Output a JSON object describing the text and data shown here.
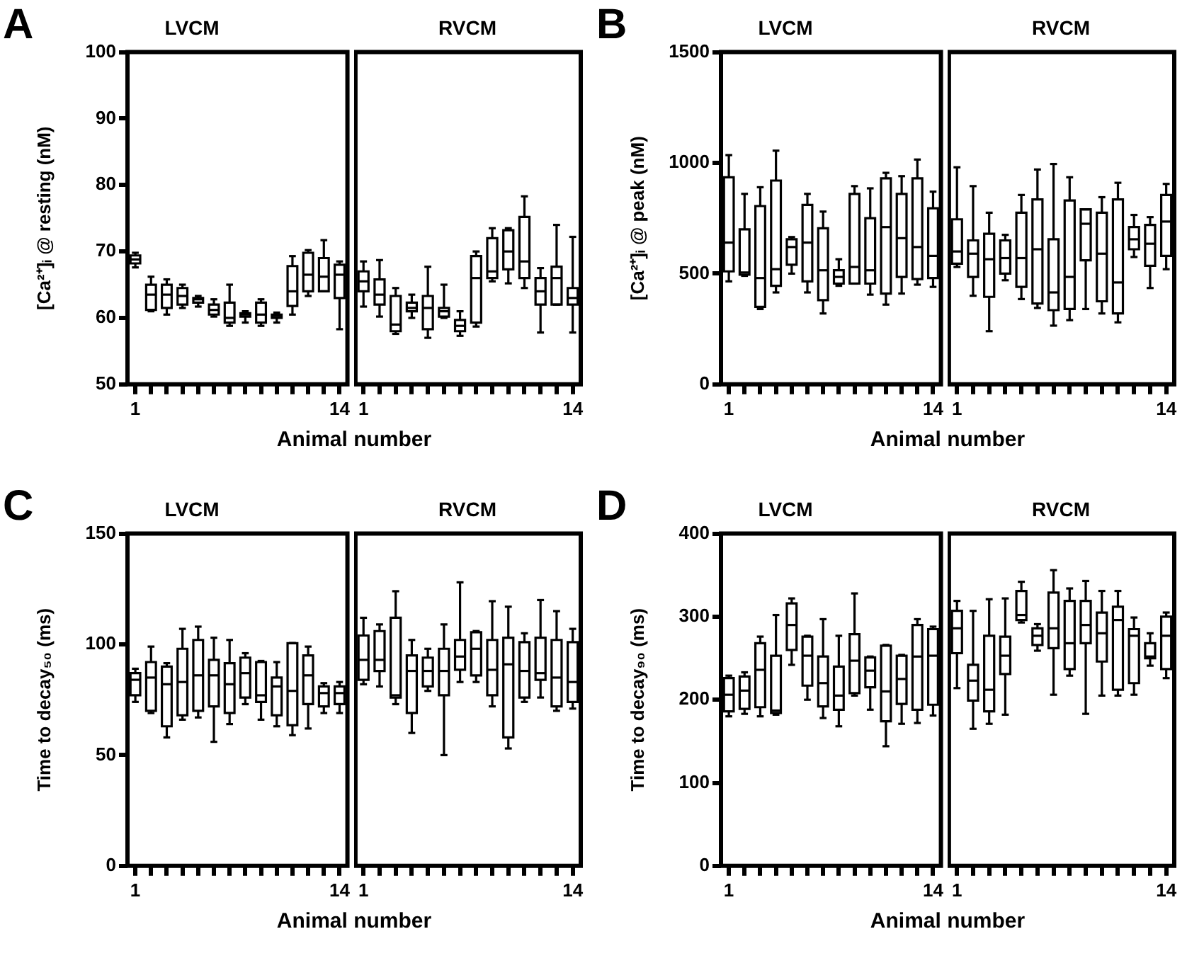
{
  "chart_data": [
    {
      "type": "box",
      "title": "LVCM",
      "ylabel": "[Ca²⁺]ᵢ @ resting (nM)",
      "xlabel": "Animal number",
      "annotations": [
        "A"
      ],
      "categories": [
        "1",
        null,
        null,
        null,
        null,
        null,
        null,
        null,
        null,
        null,
        null,
        null,
        null,
        "14"
      ],
      "ylim": [
        50,
        100
      ],
      "yticks": [
        50,
        60,
        70,
        80,
        90,
        100
      ],
      "boxes": [
        {
          "low": 67.6,
          "q1": 68.2,
          "median": 68.8,
          "q3": 69.4,
          "high": 69.8
        },
        {
          "low": 61,
          "q1": 61.2,
          "median": 63.5,
          "q3": 65,
          "high": 66.2
        },
        {
          "low": 60.5,
          "q1": 61.5,
          "median": 63.5,
          "q3": 65,
          "high": 65.8
        },
        {
          "low": 61.5,
          "q1": 62,
          "median": 63.3,
          "q3": 64.5,
          "high": 65
        },
        {
          "low": 61.7,
          "q1": 62.3,
          "median": 62.8,
          "q3": 63,
          "high": 63.3
        },
        {
          "low": 60.2,
          "q1": 60.5,
          "median": 61.2,
          "q3": 62,
          "high": 62.8
        },
        {
          "low": 58.8,
          "q1": 59.3,
          "median": 60,
          "q3": 62.3,
          "high": 65
        },
        {
          "low": 59.3,
          "q1": 60.2,
          "median": 60.5,
          "q3": 60.7,
          "high": 61
        },
        {
          "low": 58.8,
          "q1": 59.3,
          "median": 60.5,
          "q3": 62.3,
          "high": 62.8
        },
        {
          "low": 59.3,
          "q1": 60,
          "median": 60.3,
          "q3": 60.5,
          "high": 60.8
        },
        {
          "low": 60.5,
          "q1": 61.8,
          "median": 64,
          "q3": 67.8,
          "high": 69.3
        },
        {
          "low": 63.3,
          "q1": 64,
          "median": 66.5,
          "q3": 69.8,
          "high": 70.2
        },
        {
          "low": 64,
          "q1": 64,
          "median": 66.2,
          "q3": 69,
          "high": 71.7
        },
        {
          "low": 58.3,
          "q1": 63,
          "median": 66.5,
          "q3": 68,
          "high": 68.5
        }
      ]
    },
    {
      "type": "box",
      "title": "RVCM",
      "tick_labels": "x",
      "categories": [
        "1",
        null,
        null,
        null,
        null,
        null,
        null,
        null,
        null,
        null,
        null,
        null,
        null,
        "14"
      ],
      "ylim": [
        50,
        100
      ],
      "boxes": [
        {
          "low": 61.7,
          "q1": 64,
          "median": 65.5,
          "q3": 67,
          "high": 68.5
        },
        {
          "low": 60.2,
          "q1": 62,
          "median": 63.5,
          "q3": 65.8,
          "high": 68.7
        },
        {
          "low": 57.6,
          "q1": 58,
          "median": 59,
          "q3": 63.3,
          "high": 64.5
        },
        {
          "low": 60,
          "q1": 61,
          "median": 61.5,
          "q3": 62.3,
          "high": 63.5
        },
        {
          "low": 57,
          "q1": 58.3,
          "median": 61.5,
          "q3": 63.3,
          "high": 67.7
        },
        {
          "low": 60,
          "q1": 60.2,
          "median": 61,
          "q3": 61.5,
          "high": 65
        },
        {
          "low": 57.3,
          "q1": 58,
          "median": 58.8,
          "q3": 59.7,
          "high": 61
        },
        {
          "low": 58.7,
          "q1": 59.3,
          "median": 66,
          "q3": 69.3,
          "high": 70
        },
        {
          "low": 65.5,
          "q1": 66,
          "median": 67,
          "q3": 72,
          "high": 73.5
        },
        {
          "low": 65.2,
          "q1": 67.3,
          "median": 70,
          "q3": 73.2,
          "high": 73.5
        },
        {
          "low": 64.5,
          "q1": 66,
          "median": 68.5,
          "q3": 75.2,
          "high": 78.3
        },
        {
          "low": 57.8,
          "q1": 62,
          "median": 64,
          "q3": 66,
          "high": 67.5
        },
        {
          "low": 62,
          "q1": 62,
          "median": 66,
          "q3": 67.7,
          "high": 74
        },
        {
          "low": 57.8,
          "q1": 62,
          "median": 63,
          "q3": 64.5,
          "high": 72.2
        }
      ]
    },
    {
      "type": "box",
      "title": "LVCM",
      "ylabel": "[Ca²⁺]ᵢ @ peak (nM)",
      "xlabel": "Animal number",
      "annotations": [
        "B"
      ],
      "categories": [
        "1",
        null,
        null,
        null,
        null,
        null,
        null,
        null,
        null,
        null,
        null,
        null,
        null,
        "14"
      ],
      "ylim": [
        0,
        1500
      ],
      "yticks": [
        0,
        500,
        1000,
        1500
      ],
      "boxes": [
        {
          "low": 465,
          "q1": 510,
          "median": 640,
          "q3": 935,
          "high": 1035
        },
        {
          "low": 490,
          "q1": 495,
          "median": 505,
          "q3": 700,
          "high": 860
        },
        {
          "low": 340,
          "q1": 350,
          "median": 480,
          "q3": 805,
          "high": 890
        },
        {
          "low": 415,
          "q1": 445,
          "median": 520,
          "q3": 920,
          "high": 1055
        },
        {
          "low": 500,
          "q1": 540,
          "median": 620,
          "q3": 655,
          "high": 665
        },
        {
          "low": 415,
          "q1": 465,
          "median": 640,
          "q3": 810,
          "high": 860
        },
        {
          "low": 320,
          "q1": 380,
          "median": 515,
          "q3": 705,
          "high": 780
        },
        {
          "low": 445,
          "q1": 455,
          "median": 485,
          "q3": 515,
          "high": 565
        },
        {
          "low": 455,
          "q1": 455,
          "median": 530,
          "q3": 860,
          "high": 895
        },
        {
          "low": 405,
          "q1": 455,
          "median": 515,
          "q3": 750,
          "high": 885
        },
        {
          "low": 360,
          "q1": 410,
          "median": 710,
          "q3": 930,
          "high": 955
        },
        {
          "low": 410,
          "q1": 485,
          "median": 660,
          "q3": 860,
          "high": 940
        },
        {
          "low": 450,
          "q1": 475,
          "median": 620,
          "q3": 930,
          "high": 1015
        },
        {
          "low": 440,
          "q1": 480,
          "median": 580,
          "q3": 795,
          "high": 870
        }
      ]
    },
    {
      "type": "box",
      "title": "RVCM",
      "tick_labels": "x",
      "categories": [
        "1",
        null,
        null,
        null,
        null,
        null,
        null,
        null,
        null,
        null,
        null,
        null,
        null,
        "14"
      ],
      "ylim": [
        0,
        1500
      ],
      "boxes": [
        {
          "low": 530,
          "q1": 545,
          "median": 600,
          "q3": 745,
          "high": 980
        },
        {
          "low": 400,
          "q1": 485,
          "median": 590,
          "q3": 650,
          "high": 895
        },
        {
          "low": 240,
          "q1": 395,
          "median": 565,
          "q3": 680,
          "high": 775
        },
        {
          "low": 470,
          "q1": 500,
          "median": 570,
          "q3": 650,
          "high": 675
        },
        {
          "low": 385,
          "q1": 440,
          "median": 570,
          "q3": 775,
          "high": 855
        },
        {
          "low": 345,
          "q1": 365,
          "median": 610,
          "q3": 835,
          "high": 970
        },
        {
          "low": 265,
          "q1": 335,
          "median": 415,
          "q3": 655,
          "high": 995
        },
        {
          "low": 290,
          "q1": 340,
          "median": 485,
          "q3": 830,
          "high": 935
        },
        {
          "low": 340,
          "q1": 560,
          "median": 725,
          "q3": 790,
          "high": 790
        },
        {
          "low": 320,
          "q1": 375,
          "median": 590,
          "q3": 775,
          "high": 845
        },
        {
          "low": 280,
          "q1": 320,
          "median": 460,
          "q3": 835,
          "high": 910
        },
        {
          "low": 575,
          "q1": 610,
          "median": 655,
          "q3": 710,
          "high": 765
        },
        {
          "low": 435,
          "q1": 535,
          "median": 635,
          "q3": 720,
          "high": 755
        },
        {
          "low": 520,
          "q1": 580,
          "median": 735,
          "q3": 855,
          "high": 905
        }
      ]
    },
    {
      "type": "box",
      "title": "LVCM",
      "ylabel": "Time to decay₅₀ (ms)",
      "xlabel": "Animal number",
      "annotations": [
        "C"
      ],
      "categories": [
        "1",
        null,
        null,
        null,
        null,
        null,
        null,
        null,
        null,
        null,
        null,
        null,
        null,
        "14"
      ],
      "ylim": [
        0,
        150
      ],
      "yticks": [
        0,
        50,
        100,
        150
      ],
      "boxes": [
        {
          "low": 74,
          "q1": 77,
          "median": 84,
          "q3": 87,
          "high": 89
        },
        {
          "low": 69,
          "q1": 70,
          "median": 85,
          "q3": 92,
          "high": 99
        },
        {
          "low": 58,
          "q1": 63,
          "median": 82,
          "q3": 90,
          "high": 91.5
        },
        {
          "low": 66,
          "q1": 68,
          "median": 83,
          "q3": 98,
          "high": 107
        },
        {
          "low": 67,
          "q1": 70,
          "median": 86,
          "q3": 102,
          "high": 108
        },
        {
          "low": 56,
          "q1": 72,
          "median": 86,
          "q3": 93,
          "high": 103
        },
        {
          "low": 64,
          "q1": 69,
          "median": 82,
          "q3": 91.5,
          "high": 102
        },
        {
          "low": 73,
          "q1": 76,
          "median": 87,
          "q3": 94,
          "high": 96
        },
        {
          "low": 66,
          "q1": 74,
          "median": 77,
          "q3": 92,
          "high": 92.5
        },
        {
          "low": 63,
          "q1": 68,
          "median": 81,
          "q3": 85,
          "high": 92
        },
        {
          "low": 59,
          "q1": 63.5,
          "median": 79,
          "q3": 100.5,
          "high": 100.6
        },
        {
          "low": 62,
          "q1": 73,
          "median": 86,
          "q3": 95,
          "high": 99
        },
        {
          "low": 69,
          "q1": 72,
          "median": 78,
          "q3": 81,
          "high": 82.5
        },
        {
          "low": 69,
          "q1": 73,
          "median": 78,
          "q3": 81,
          "high": 83
        }
      ]
    },
    {
      "type": "box",
      "title": "RVCM",
      "tick_labels": "x",
      "categories": [
        "1",
        null,
        null,
        null,
        null,
        null,
        null,
        null,
        null,
        null,
        null,
        null,
        null,
        "14"
      ],
      "ylim": [
        0,
        150
      ],
      "boxes": [
        {
          "low": 82,
          "q1": 84,
          "median": 93,
          "q3": 104,
          "high": 112
        },
        {
          "low": 81,
          "q1": 88,
          "median": 93,
          "q3": 106,
          "high": 109
        },
        {
          "low": 73,
          "q1": 76,
          "median": 77,
          "q3": 112,
          "high": 124
        },
        {
          "low": 60,
          "q1": 69,
          "median": 88,
          "q3": 95,
          "high": 102
        },
        {
          "low": 79,
          "q1": 81,
          "median": 88,
          "q3": 94,
          "high": 98
        },
        {
          "low": 50,
          "q1": 77,
          "median": 88,
          "q3": 98,
          "high": 109
        },
        {
          "low": 83,
          "q1": 88.5,
          "median": 94.5,
          "q3": 102,
          "high": 128
        },
        {
          "low": 83,
          "q1": 86,
          "median": 98,
          "q3": 105.5,
          "high": 106
        },
        {
          "low": 72,
          "q1": 77,
          "median": 88.5,
          "q3": 102,
          "high": 119.5
        },
        {
          "low": 53,
          "q1": 58,
          "median": 91,
          "q3": 103,
          "high": 117
        },
        {
          "low": 74,
          "q1": 76,
          "median": 88,
          "q3": 101,
          "high": 105
        },
        {
          "low": 76,
          "q1": 84,
          "median": 87,
          "q3": 103,
          "high": 120
        },
        {
          "low": 70,
          "q1": 72,
          "median": 85,
          "q3": 102,
          "high": 115
        },
        {
          "low": 71,
          "q1": 74,
          "median": 83,
          "q3": 101,
          "high": 107
        }
      ]
    },
    {
      "type": "box",
      "title": "LVCM",
      "ylabel": "Time to decay₉₀ (ms)",
      "xlabel": "Animal number",
      "annotations": [
        "D"
      ],
      "categories": [
        "1",
        null,
        null,
        null,
        null,
        null,
        null,
        null,
        null,
        null,
        null,
        null,
        null,
        "14"
      ],
      "ylim": [
        0,
        400
      ],
      "yticks": [
        0,
        100,
        200,
        300,
        400
      ],
      "boxes": [
        {
          "low": 180,
          "q1": 186,
          "median": 206,
          "q3": 226,
          "high": 229
        },
        {
          "low": 183,
          "q1": 189,
          "median": 211,
          "q3": 228,
          "high": 233
        },
        {
          "low": 180,
          "q1": 191,
          "median": 236,
          "q3": 268,
          "high": 276
        },
        {
          "low": 182,
          "q1": 184,
          "median": 187,
          "q3": 253,
          "high": 302
        },
        {
          "low": 242,
          "q1": 260,
          "median": 290,
          "q3": 316,
          "high": 322
        },
        {
          "low": 200,
          "q1": 217,
          "median": 253,
          "q3": 276,
          "high": 277
        },
        {
          "low": 178,
          "q1": 192,
          "median": 220,
          "q3": 252,
          "high": 297
        },
        {
          "low": 168,
          "q1": 188,
          "median": 205,
          "q3": 240,
          "high": 277
        },
        {
          "low": 205,
          "q1": 208,
          "median": 247,
          "q3": 279,
          "high": 328
        },
        {
          "low": 188,
          "q1": 215,
          "median": 235,
          "q3": 251,
          "high": 252
        },
        {
          "low": 144,
          "q1": 174,
          "median": 210,
          "q3": 265,
          "high": 266
        },
        {
          "low": 171,
          "q1": 195,
          "median": 225,
          "q3": 253,
          "high": 254
        },
        {
          "low": 172,
          "q1": 188,
          "median": 252,
          "q3": 290,
          "high": 297
        },
        {
          "low": 181,
          "q1": 194,
          "median": 253,
          "q3": 285,
          "high": 288
        }
      ]
    },
    {
      "type": "box",
      "title": "RVCM",
      "tick_labels": "x",
      "categories": [
        "1",
        null,
        null,
        null,
        null,
        null,
        null,
        null,
        null,
        null,
        null,
        null,
        null,
        "14"
      ],
      "ylim": [
        0,
        400
      ],
      "boxes": [
        {
          "low": 214,
          "q1": 256,
          "median": 286,
          "q3": 307,
          "high": 319
        },
        {
          "low": 165,
          "q1": 199,
          "median": 223,
          "q3": 242,
          "high": 307
        },
        {
          "low": 171,
          "q1": 186,
          "median": 212,
          "q3": 277,
          "high": 321
        },
        {
          "low": 182,
          "q1": 231,
          "median": 253,
          "q3": 276,
          "high": 322
        },
        {
          "low": 293,
          "q1": 296,
          "median": 302,
          "q3": 331,
          "high": 342
        },
        {
          "low": 259,
          "q1": 266,
          "median": 277,
          "q3": 286,
          "high": 291
        },
        {
          "low": 206,
          "q1": 262,
          "median": 286,
          "q3": 329,
          "high": 356
        },
        {
          "low": 229,
          "q1": 237,
          "median": 268,
          "q3": 319,
          "high": 334
        },
        {
          "low": 183,
          "q1": 268,
          "median": 290,
          "q3": 319,
          "high": 343
        },
        {
          "low": 205,
          "q1": 246,
          "median": 280,
          "q3": 305,
          "high": 331
        },
        {
          "low": 205,
          "q1": 212,
          "median": 296,
          "q3": 312,
          "high": 331
        },
        {
          "low": 206,
          "q1": 220,
          "median": 277,
          "q3": 285,
          "high": 299
        },
        {
          "low": 241,
          "q1": 250,
          "median": 252,
          "q3": 268,
          "high": 280
        },
        {
          "low": 226,
          "q1": 237,
          "median": 277,
          "q3": 300,
          "high": 305
        }
      ]
    }
  ]
}
